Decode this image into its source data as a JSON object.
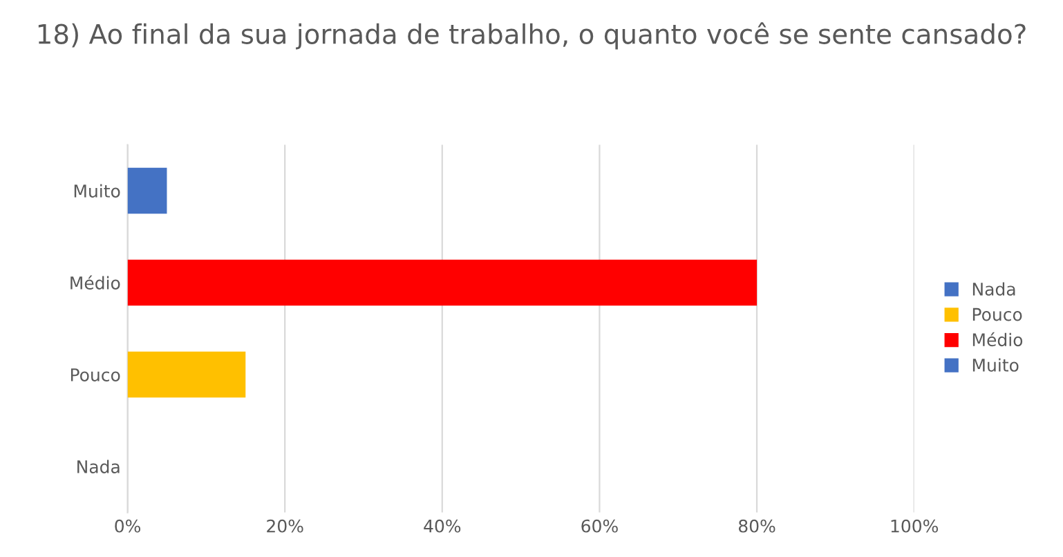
{
  "chart_data": {
    "type": "bar",
    "orientation": "horizontal",
    "title": "18) Ao final da sua jornada de trabalho, o quanto você se sente cansado?",
    "categories": [
      "Muito",
      "Médio",
      "Pouco",
      "Nada"
    ],
    "series": [
      {
        "name": "Nada",
        "color": "#4472c4",
        "values": [
          null,
          null,
          null,
          0
        ]
      },
      {
        "name": "Pouco",
        "color": "#ffc000",
        "values": [
          null,
          null,
          15,
          null
        ]
      },
      {
        "name": "Médio",
        "color": "#ff0000",
        "values": [
          null,
          80,
          null,
          null
        ]
      },
      {
        "name": "Muito",
        "color": "#4472c4",
        "values": [
          5,
          null,
          null,
          null
        ]
      }
    ],
    "xlim": [
      0,
      100
    ],
    "xticks": [
      {
        "value": 0,
        "label": "0%"
      },
      {
        "value": 20,
        "label": "20%"
      },
      {
        "value": 40,
        "label": "40%"
      },
      {
        "value": 60,
        "label": "60%"
      },
      {
        "value": 80,
        "label": "80%"
      },
      {
        "value": 100,
        "label": "100%"
      }
    ],
    "grid": "x",
    "legend": "right"
  }
}
